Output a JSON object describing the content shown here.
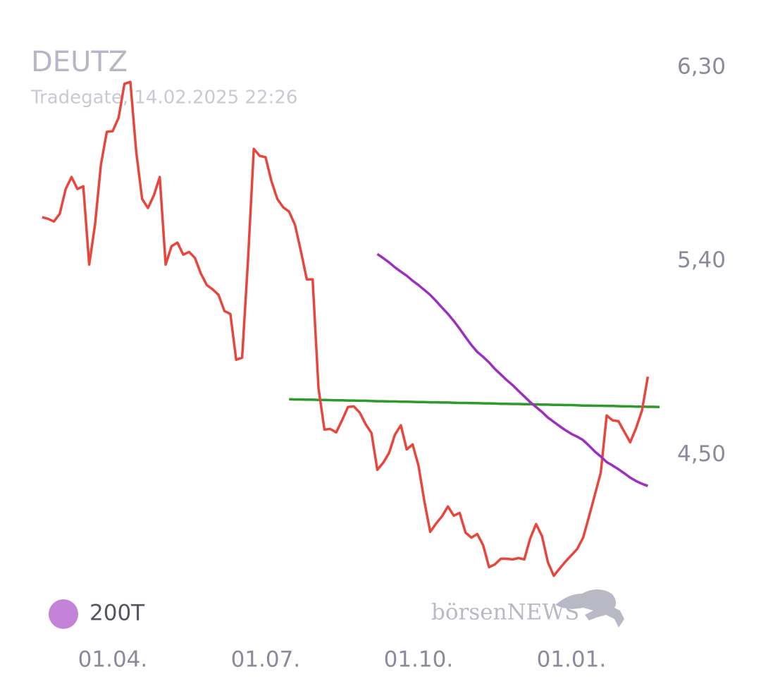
{
  "chart_data": {
    "type": "line",
    "title": "DEUTZ",
    "subtitle": "Tradegate, 14.02.2025 22:26",
    "logo": "börsenNEWS",
    "categories": [
      null,
      null,
      null,
      null,
      null,
      null,
      null,
      null,
      null,
      null,
      null,
      null,
      "01.04.",
      null,
      null,
      null,
      null,
      null,
      null,
      null,
      null,
      null,
      null,
      null,
      null,
      null,
      null,
      null,
      null,
      null,
      null,
      null,
      null,
      null,
      null,
      null,
      null,
      null,
      "01.07.",
      null,
      null,
      null,
      null,
      null,
      null,
      null,
      null,
      null,
      null,
      null,
      null,
      null,
      null,
      null,
      null,
      null,
      null,
      null,
      null,
      null,
      null,
      null,
      null,
      null,
      "01.10.",
      null,
      null,
      null,
      null,
      null,
      null,
      null,
      null,
      null,
      null,
      null,
      null,
      null,
      null,
      null,
      null,
      null,
      null,
      null,
      null,
      null,
      null,
      null,
      null,
      null,
      "01.01.",
      null,
      null,
      null,
      null,
      null,
      null,
      null,
      null,
      null,
      null,
      null,
      null,
      null,
      null,
      null
    ],
    "series": [
      {
        "color": "#e8453c",
        "values": [
          5.605,
          5.598,
          5.585,
          5.621,
          5.736,
          5.792,
          5.736,
          5.749,
          5.385,
          5.572,
          5.851,
          6.002,
          6.005,
          6.067,
          6.225,
          6.234,
          5.91,
          5.69,
          5.648,
          5.707,
          5.792,
          5.385,
          5.47,
          5.487,
          5.431,
          5.444,
          5.415,
          5.343,
          5.29,
          5.27,
          5.244,
          5.169,
          5.156,
          4.943,
          4.952,
          5.402,
          5.923,
          5.89,
          5.884,
          5.772,
          5.69,
          5.651,
          5.631,
          5.569,
          5.448,
          5.316,
          5.316,
          4.811,
          4.618,
          4.621,
          4.605,
          4.661,
          4.723,
          4.726,
          4.697,
          4.644,
          4.602,
          4.431,
          4.464,
          4.51,
          4.595,
          4.638,
          4.526,
          4.549,
          4.451,
          4.284,
          4.143,
          4.182,
          4.215,
          4.261,
          4.218,
          4.231,
          4.139,
          4.116,
          4.133,
          4.08,
          3.979,
          3.992,
          4.018,
          4.018,
          4.015,
          4.021,
          4.015,
          4.113,
          4.179,
          4.123,
          4.002,
          3.939,
          3.972,
          4.005,
          4.034,
          4.064,
          4.116,
          4.215,
          4.316,
          4.418,
          4.684,
          4.661,
          4.657,
          4.608,
          4.559,
          4.625,
          4.707,
          4.864,
          null,
          null
        ]
      },
      {
        "name": "200T",
        "color": "#9c2fbf",
        "values": [
          null,
          null,
          null,
          null,
          null,
          null,
          null,
          null,
          null,
          null,
          null,
          null,
          null,
          null,
          null,
          null,
          null,
          null,
          null,
          null,
          null,
          null,
          null,
          null,
          null,
          null,
          null,
          null,
          null,
          null,
          null,
          null,
          null,
          null,
          null,
          null,
          null,
          null,
          null,
          null,
          null,
          null,
          null,
          null,
          null,
          null,
          null,
          null,
          null,
          null,
          null,
          null,
          null,
          null,
          null,
          null,
          null,
          5.434,
          5.415,
          5.395,
          5.372,
          5.352,
          5.333,
          5.31,
          5.29,
          5.267,
          5.244,
          5.215,
          5.185,
          5.156,
          5.123,
          5.087,
          5.048,
          5.011,
          4.979,
          4.956,
          4.93,
          4.9,
          4.874,
          4.848,
          4.825,
          4.798,
          4.772,
          4.746,
          4.723,
          4.7,
          4.674,
          4.654,
          4.634,
          4.615,
          4.598,
          4.585,
          4.569,
          4.543,
          4.516,
          4.493,
          4.467,
          4.451,
          4.434,
          4.415,
          4.395,
          4.379,
          4.366,
          4.356,
          null,
          null
        ]
      },
      {
        "color": "#2e9a2a",
        "values": [
          null,
          null,
          null,
          null,
          null,
          null,
          null,
          null,
          null,
          null,
          null,
          null,
          null,
          null,
          null,
          null,
          null,
          null,
          null,
          null,
          null,
          null,
          null,
          null,
          null,
          null,
          null,
          null,
          null,
          null,
          null,
          null,
          null,
          null,
          null,
          null,
          null,
          null,
          null,
          null,
          null,
          null,
          4.759,
          4.758,
          4.758,
          4.757,
          4.757,
          4.756,
          4.756,
          4.755,
          4.754,
          4.754,
          4.753,
          4.753,
          4.752,
          4.752,
          4.751,
          4.75,
          4.75,
          4.749,
          4.749,
          4.748,
          4.748,
          4.747,
          4.746,
          4.746,
          4.745,
          4.745,
          4.744,
          4.744,
          4.743,
          4.742,
          4.742,
          4.741,
          4.741,
          4.74,
          4.74,
          4.739,
          4.738,
          4.738,
          4.737,
          4.737,
          4.736,
          4.736,
          4.735,
          4.734,
          4.734,
          4.733,
          4.733,
          4.732,
          4.732,
          4.731,
          4.73,
          4.73,
          4.729,
          4.729,
          4.728,
          4.728,
          4.727,
          4.726,
          4.726,
          4.725,
          4.725,
          4.724,
          4.724,
          4.723
        ]
      }
    ],
    "ylim": [
      3.7,
      6.4
    ],
    "yticks": [
      {
        "value": 4.5,
        "label": "4,50"
      },
      {
        "value": 5.4,
        "label": "5,40"
      },
      {
        "value": 6.3,
        "label": "6,30"
      }
    ],
    "grid": false
  }
}
